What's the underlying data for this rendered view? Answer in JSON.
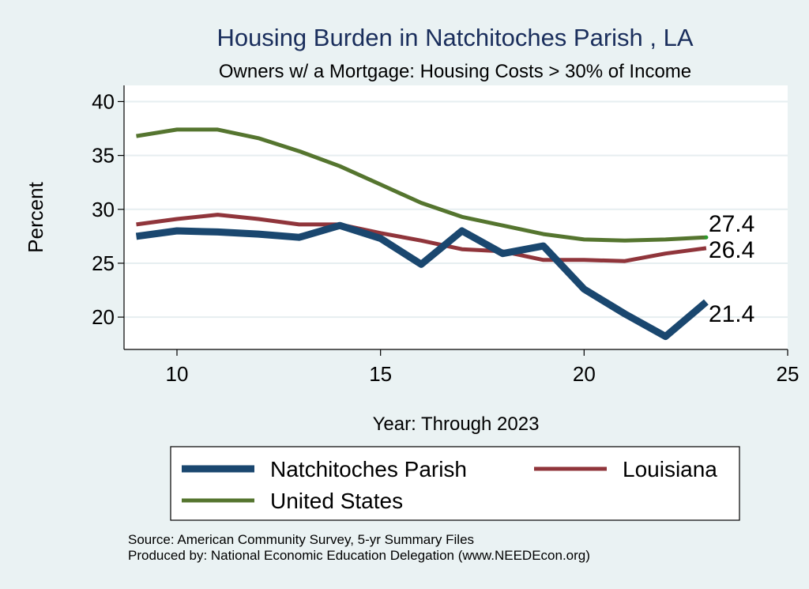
{
  "chart_data": {
    "type": "line",
    "title": "Housing Burden in Natchitoches Parish , LA",
    "subtitle": "Owners w/ a Mortgage: Housing Costs > 30% of Income",
    "xlabel": "Year: Through 2023",
    "ylabel": "Percent",
    "xlim": [
      8.7,
      25
    ],
    "ylim": [
      17,
      41.5
    ],
    "xticks": [
      10,
      15,
      20,
      25
    ],
    "yticks": [
      20,
      25,
      30,
      35,
      40
    ],
    "grid": true,
    "legend_position": "bottom",
    "series": [
      {
        "name": "Natchitoches Parish",
        "color": "#1a476f",
        "x": [
          9,
          10,
          11,
          12,
          13,
          14,
          15,
          16,
          17,
          18,
          19,
          20,
          21,
          22,
          23
        ],
        "values": [
          27.5,
          28.0,
          27.9,
          27.7,
          27.4,
          28.5,
          27.3,
          24.9,
          28.0,
          25.9,
          26.6,
          22.6,
          20.3,
          18.2,
          21.4
        ],
        "end_label": "21.4"
      },
      {
        "name": "Louisiana",
        "color": "#90353b",
        "x": [
          9,
          10,
          11,
          12,
          13,
          14,
          15,
          16,
          17,
          18,
          19,
          20,
          21,
          22,
          23
        ],
        "values": [
          28.6,
          29.1,
          29.5,
          29.1,
          28.6,
          28.6,
          27.8,
          27.1,
          26.3,
          26.1,
          25.3,
          25.3,
          25.2,
          25.9,
          26.4
        ],
        "end_label": "26.4"
      },
      {
        "name": "United States",
        "color": "#55752f",
        "x": [
          9,
          10,
          11,
          12,
          13,
          14,
          15,
          16,
          17,
          18,
          19,
          20,
          21,
          22,
          23
        ],
        "values": [
          36.8,
          37.4,
          37.4,
          36.6,
          35.4,
          34.0,
          32.3,
          30.6,
          29.3,
          28.5,
          27.7,
          27.2,
          27.1,
          27.2,
          27.4
        ],
        "end_label": "27.4"
      }
    ],
    "source_note": "Source: American Community Survey, 5-yr Summary Files",
    "produced_note": "Produced by: National Economic Education Delegation (www.NEEDEcon.org)"
  }
}
